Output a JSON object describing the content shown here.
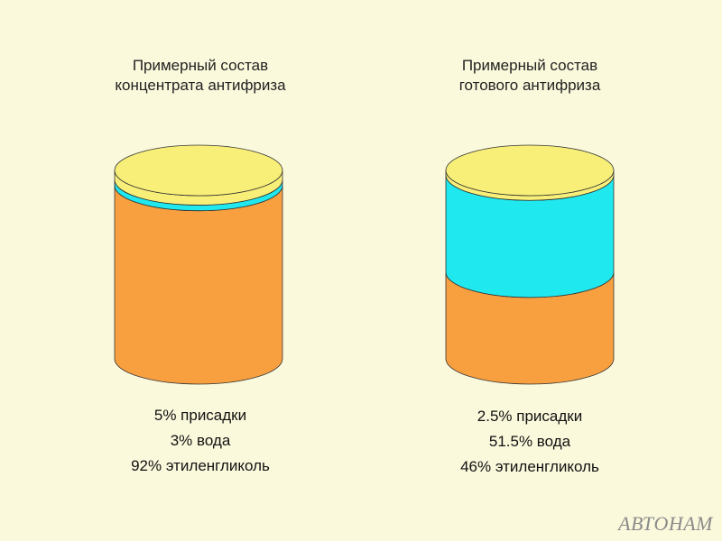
{
  "left": {
    "title_line1": "Примерный состав",
    "title_line2": "концентрата антифриза",
    "composition": [
      {
        "label": "5% присадки",
        "percent": 5,
        "color": "#f8ef78"
      },
      {
        "label": "3% вода",
        "percent": 3,
        "color": "#1fe9ef"
      },
      {
        "label": "92% этиленгликоль",
        "percent": 92,
        "color": "#f8a040"
      }
    ]
  },
  "right": {
    "title_line1": "Примерный состав",
    "title_line2": "готового антифриза",
    "composition": [
      {
        "label": "2.5% присадки",
        "percent": 2.5,
        "color": "#f8ef78"
      },
      {
        "label": "51.5% вода",
        "percent": 51.5,
        "color": "#1fe9ef"
      },
      {
        "label": "46% этиленгликоль",
        "percent": 46,
        "color": "#f8a040"
      }
    ]
  },
  "watermark": "АВТОНАМ"
}
